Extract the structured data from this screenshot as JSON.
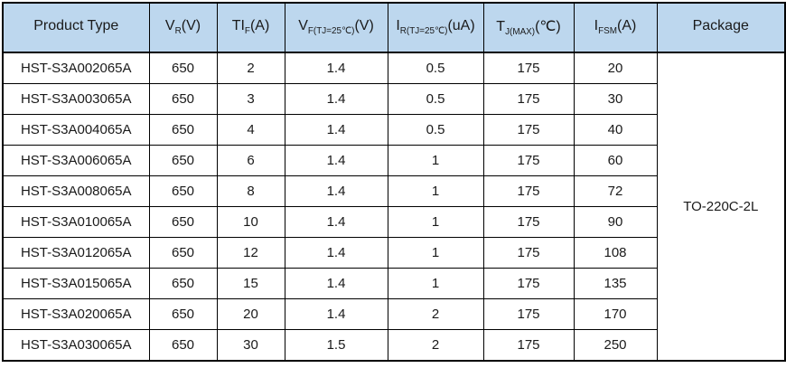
{
  "colors": {
    "header_bg": "#bdd7ee",
    "border": "#000000",
    "text": "#1a1a1a",
    "row_bg": "#ffffff"
  },
  "table": {
    "columns": [
      {
        "main": "Product Type",
        "sub": "",
        "tail": ""
      },
      {
        "main": "V",
        "sub": "R",
        "tail": "(V)"
      },
      {
        "main": "TI",
        "sub": "F",
        "tail": "(A)"
      },
      {
        "main": "V",
        "sub": "F(TJ=25℃)",
        "tail": "(V)"
      },
      {
        "main": "I",
        "sub": "R(TJ=25℃)",
        "tail": "(uA)"
      },
      {
        "main": "T",
        "sub": "J(MAX)",
        "tail": "(℃)"
      },
      {
        "main": "I",
        "sub": "FSM",
        "tail": "(A)"
      },
      {
        "main": "Package",
        "sub": "",
        "tail": ""
      }
    ],
    "rows": [
      {
        "cells": [
          "HST-S3A002065A",
          "650",
          "2",
          "1.4",
          "0.5",
          "175",
          "20"
        ]
      },
      {
        "cells": [
          "HST-S3A003065A",
          "650",
          "3",
          "1.4",
          "0.5",
          "175",
          "30"
        ]
      },
      {
        "cells": [
          "HST-S3A004065A",
          "650",
          "4",
          "1.4",
          "0.5",
          "175",
          "40"
        ]
      },
      {
        "cells": [
          "HST-S3A006065A",
          "650",
          "6",
          "1.4",
          "1",
          "175",
          "60"
        ]
      },
      {
        "cells": [
          "HST-S3A008065A",
          "650",
          "8",
          "1.4",
          "1",
          "175",
          "72"
        ]
      },
      {
        "cells": [
          "HST-S3A010065A",
          "650",
          "10",
          "1.4",
          "1",
          "175",
          "90"
        ]
      },
      {
        "cells": [
          "HST-S3A012065A",
          "650",
          "12",
          "1.4",
          "1",
          "175",
          "108"
        ]
      },
      {
        "cells": [
          "HST-S3A015065A",
          "650",
          "15",
          "1.4",
          "1",
          "175",
          "135"
        ]
      },
      {
        "cells": [
          "HST-S3A020065A",
          "650",
          "20",
          "1.4",
          "2",
          "175",
          "170"
        ]
      },
      {
        "cells": [
          "HST-S3A030065A",
          "650",
          "30",
          "1.5",
          "2",
          "175",
          "250"
        ]
      }
    ],
    "package": "TO-220C-2L"
  }
}
